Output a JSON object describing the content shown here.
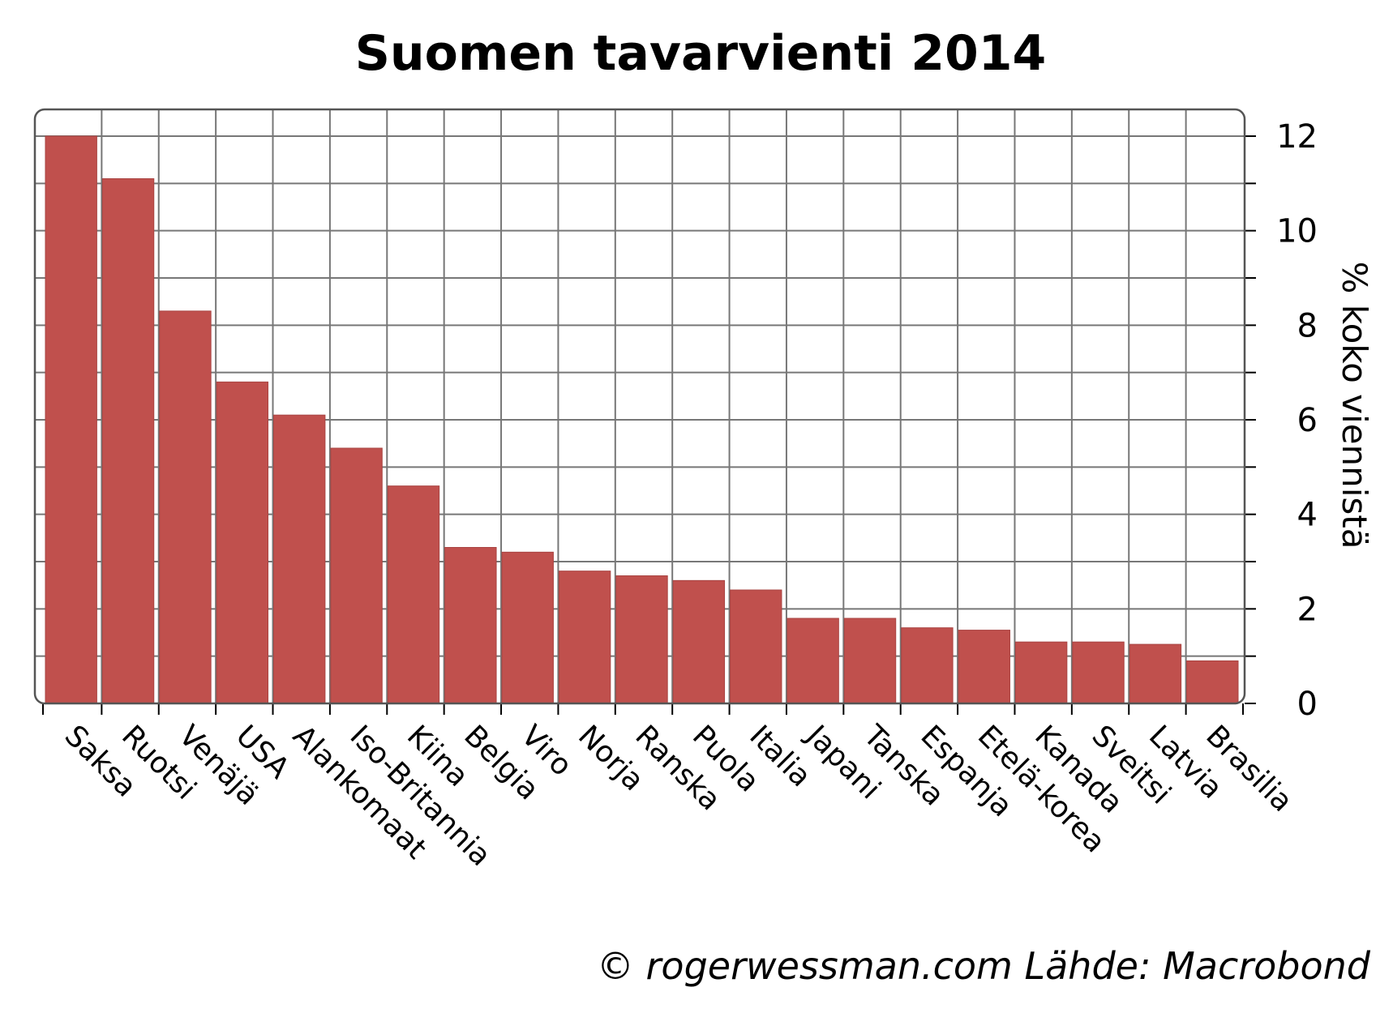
{
  "chart_data": {
    "type": "bar",
    "title": "Suomen tavarvienti 2014",
    "ylabel": "% koko viennistä",
    "xlabel": "",
    "ylim": [
      0,
      12.5
    ],
    "yticks": [
      0,
      2,
      4,
      6,
      8,
      10,
      12
    ],
    "y_axis_side": "right",
    "grid": true,
    "bar_color": "#c0504d",
    "categories": [
      "Saksa",
      "Ruotsi",
      "Venäjä",
      "USA",
      "Alankomaat",
      "Iso-Britannia",
      "Kiina",
      "Belgia",
      "Viro",
      "Norja",
      "Ranska",
      "Puola",
      "Italia",
      "Japani",
      "Tanska",
      "Espanja",
      "Etelä-korea",
      "Kanada",
      "Sveitsi",
      "Latvia",
      "Brasilia"
    ],
    "values": [
      12.0,
      11.1,
      8.3,
      6.8,
      6.1,
      5.4,
      4.6,
      3.3,
      3.2,
      2.8,
      2.7,
      2.6,
      2.4,
      1.8,
      1.8,
      1.6,
      1.55,
      1.3,
      1.3,
      1.25,
      0.9
    ]
  },
  "footer": "© rogerwessman.com Lähde: Macrobond"
}
